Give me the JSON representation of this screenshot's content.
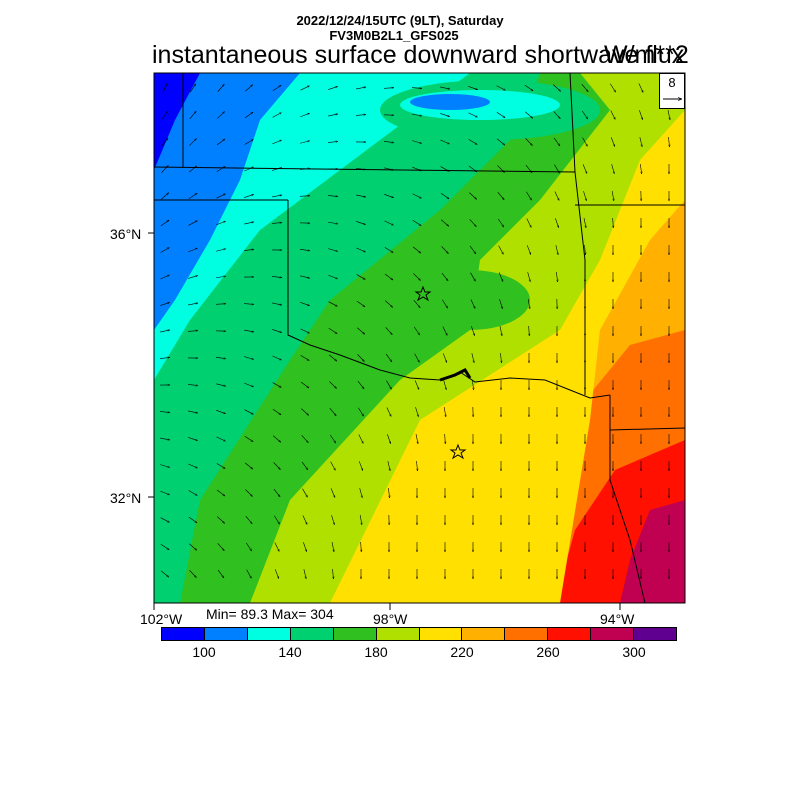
{
  "header": {
    "datetime": "2022/12/24/15UTC (9LT), Saturday",
    "model": "FV3M0B2L1_GFS025",
    "title": "instantaneous surface downward shortwave flux",
    "units": "W/m**2"
  },
  "stats": {
    "min_max": "Min= 89.3 Max= 304"
  },
  "reference_vector": {
    "value": "8"
  },
  "axes": {
    "lat_labels": [
      "36°N",
      "32°N"
    ],
    "lon_labels": [
      "102°W",
      "98°W",
      "94°W"
    ]
  },
  "colorbar": {
    "colors": [
      "#0000ff",
      "#0080ff",
      "#00ffe0",
      "#00d070",
      "#30c020",
      "#b0e000",
      "#ffe000",
      "#ffb000",
      "#ff7000",
      "#ff1000",
      "#c00050",
      "#600090"
    ],
    "labels": [
      "100",
      "140",
      "180",
      "220",
      "260",
      "300"
    ]
  },
  "markers": [
    "star",
    "star"
  ]
}
